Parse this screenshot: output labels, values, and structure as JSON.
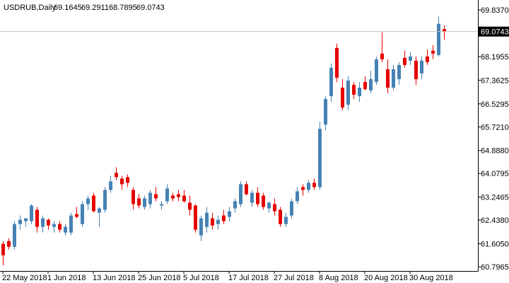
{
  "chart_data": {
    "type": "candlestick",
    "title": "USDRUB,Daily",
    "categories": [
      "22 May 2018",
      null,
      null,
      null,
      null,
      null,
      null,
      null,
      "1 Jun 2018",
      null,
      null,
      null,
      null,
      null,
      null,
      null,
      "13 Jun 2018",
      null,
      null,
      null,
      null,
      null,
      null,
      null,
      "25 Jun 2018",
      null,
      null,
      null,
      null,
      null,
      null,
      null,
      "5 Jul 2018",
      null,
      null,
      null,
      null,
      null,
      null,
      null,
      "17 Jul 2018",
      null,
      null,
      null,
      null,
      null,
      null,
      null,
      "27 Jul 2018",
      null,
      null,
      null,
      null,
      null,
      null,
      null,
      "8 Aug 2018",
      null,
      null,
      null,
      null,
      null,
      null,
      null,
      "20 Aug 2018",
      null,
      null,
      null,
      null,
      null,
      null,
      null,
      "30 Aug 2018",
      null,
      null,
      null,
      null,
      null,
      null
    ],
    "open": [
      61.6,
      61.7,
      61.5,
      62.3,
      62.4,
      62.4,
      62.8,
      62.2,
      62.45,
      62.2,
      62.3,
      62.0,
      62.0,
      62.65,
      62.3,
      63.0,
      63.3,
      62.7,
      62.8,
      63.5,
      64.1,
      63.9,
      63.95,
      63.5,
      63.2,
      62.9,
      63.0,
      63.35,
      62.95,
      63.1,
      63.3,
      63.35,
      63.3,
      63.05,
      62.95,
      61.9,
      62.2,
      62.5,
      62.3,
      62.6,
      62.55,
      62.85,
      63.0,
      63.7,
      63.05,
      63.4,
      63.3,
      62.85,
      63.0,
      62.8,
      62.3,
      62.6,
      63.1,
      63.6,
      63.5,
      63.75,
      63.6,
      65.8,
      66.8,
      68.5,
      67.1,
      66.5,
      67.2,
      66.8,
      67.3,
      67.0,
      67.3,
      68.3,
      67.75,
      67.1,
      67.4,
      68.15,
      68.05,
      68.05,
      67.6,
      68.2,
      68.4,
      68.25,
      69.1645
    ],
    "high": [
      61.7,
      61.8,
      62.4,
      62.6,
      62.5,
      63.0,
      62.9,
      62.6,
      62.5,
      62.4,
      62.4,
      62.3,
      62.7,
      62.9,
      63.1,
      63.3,
      63.4,
      62.9,
      63.6,
      64.0,
      64.3,
      64.0,
      64.05,
      63.6,
      63.35,
      63.3,
      63.5,
      63.6,
      63.1,
      63.7,
      63.4,
      63.5,
      63.5,
      63.3,
      63.0,
      62.6,
      62.9,
      62.7,
      62.6,
      62.8,
      62.9,
      63.2,
      63.8,
      63.8,
      63.5,
      63.6,
      63.4,
      63.1,
      63.2,
      62.9,
      62.7,
      63.2,
      63.6,
      63.7,
      63.85,
      63.9,
      65.9,
      66.8,
      67.95,
      68.65,
      67.4,
      67.5,
      67.3,
      67.3,
      67.5,
      67.7,
      68.2,
      69.05,
      68.1,
      67.9,
      68.0,
      68.4,
      68.35,
      68.2,
      68.2,
      68.45,
      68.6,
      69.6,
      69.2911
    ],
    "low": [
      60.85,
      61.4,
      61.4,
      62.1,
      62.2,
      62.3,
      62.0,
      62.0,
      62.1,
      62.0,
      62.0,
      61.9,
      61.9,
      62.5,
      62.2,
      62.8,
      62.7,
      62.2,
      62.7,
      63.4,
      63.85,
      63.5,
      63.6,
      62.8,
      62.85,
      62.8,
      62.85,
      63.1,
      62.8,
      63.0,
      63.1,
      63.1,
      63.05,
      62.6,
      62.0,
      61.7,
      62.0,
      62.1,
      62.1,
      62.3,
      62.4,
      62.7,
      62.9,
      63.3,
      62.9,
      62.9,
      62.8,
      62.7,
      62.6,
      62.2,
      62.2,
      62.5,
      63.0,
      63.3,
      63.4,
      63.5,
      63.5,
      65.6,
      66.6,
      67.3,
      66.3,
      66.3,
      66.7,
      66.6,
      67.0,
      66.9,
      67.2,
      68.0,
      66.9,
      67.0,
      67.2,
      67.8,
      67.9,
      67.2,
      67.4,
      67.9,
      68.1,
      68.2,
      68.7895
    ],
    "close": [
      61.2,
      61.5,
      62.3,
      62.45,
      62.5,
      62.95,
      62.2,
      62.5,
      62.25,
      62.3,
      62.1,
      62.2,
      62.6,
      62.55,
      63.0,
      63.2,
      62.75,
      62.85,
      63.5,
      63.8,
      63.95,
      63.7,
      63.75,
      63.0,
      62.95,
      63.2,
      63.4,
      63.2,
      63.0,
      63.55,
      63.2,
      63.25,
      63.1,
      62.8,
      62.1,
      62.5,
      62.7,
      62.25,
      62.45,
      62.4,
      62.75,
      63.1,
      63.7,
      63.35,
      63.4,
      63.0,
      62.9,
      63.05,
      62.75,
      62.3,
      62.55,
      63.1,
      63.45,
      63.5,
      63.75,
      63.6,
      65.65,
      66.7,
      67.8,
      67.45,
      66.4,
      67.35,
      66.85,
      67.1,
      67.05,
      67.4,
      68.1,
      68.1,
      67.1,
      67.75,
      67.9,
      67.9,
      68.2,
      67.4,
      68.05,
      68.0,
      68.3,
      69.35,
      69.0743
    ],
    "ylim": [
      60.647,
      70.186
    ],
    "yticks": [
      {
        "value": 69.837,
        "label": "69.8370"
      },
      {
        "value": 68.1955,
        "label": "68.1955"
      },
      {
        "value": 67.3625,
        "label": "67.3625"
      },
      {
        "value": 66.5295,
        "label": "66.5295"
      },
      {
        "value": 65.721,
        "label": "65.7210"
      },
      {
        "value": 64.888,
        "label": "64.8880"
      },
      {
        "value": 64.0795,
        "label": "64.0795"
      },
      {
        "value": 63.2465,
        "label": "63.2465"
      },
      {
        "value": 62.438,
        "label": "62.4380"
      },
      {
        "value": 61.605,
        "label": "61.6050"
      },
      {
        "value": 60.7965,
        "label": "60.7965"
      }
    ],
    "up_color": "#4682b4",
    "down_color": "#e60000"
  }
}
